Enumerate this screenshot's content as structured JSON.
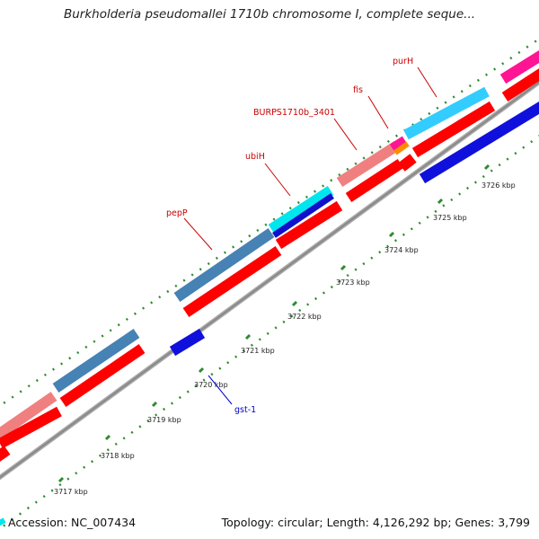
{
  "title": "Burkholderia pseudomallei 1710b chromosome I, complete seque...",
  "footer": {
    "accession": "Accession: NC_007434",
    "summary": "Topology: circular; Length: 4,126,292 bp; Genes: 3,799"
  },
  "ticks": [
    "3717 kbp",
    "3718 kbp",
    "3719 kbp",
    "3720 kbp",
    "3721 kbp",
    "3722 kbp",
    "3723 kbp",
    "3724 kbp",
    "3725 kbp",
    "3726 kbp"
  ],
  "gene_labels": {
    "purH": "purH",
    "fis": "fis",
    "burps": "BURPS1710b_3401",
    "ubiH": "ubiH",
    "pepP": "pepP",
    "gst1": "gst-1"
  },
  "colors": {
    "cds": "#ff0000",
    "steelblue": "#4682b4",
    "salmon": "#f08080",
    "cyan": "#00ccff",
    "blue": "#0000dd",
    "magenta": "#ff1493",
    "orange": "#ff8c00",
    "label_red": "#cc0000",
    "label_blue": "#0000cc"
  }
}
